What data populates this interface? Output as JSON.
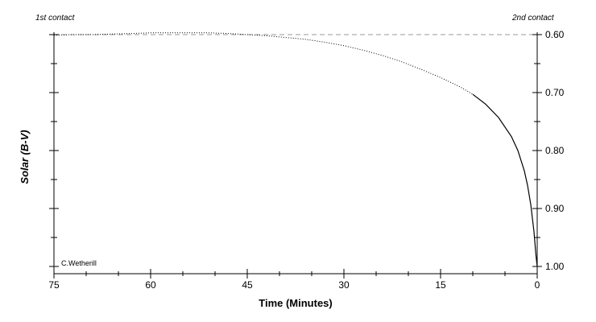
{
  "chart_data": {
    "type": "line",
    "xlabel": "Time (Minutes)",
    "ylabel": "Solar (B-V)",
    "x_reversed": true,
    "xlim": [
      75,
      0
    ],
    "ylim": [
      0.6,
      1.0
    ],
    "y_reversed": true,
    "y_axis_side": "right",
    "x_ticks": [
      75,
      60,
      45,
      30,
      15,
      0
    ],
    "x_tick_labels": [
      "75",
      "60",
      "45",
      "30",
      "15",
      "0"
    ],
    "y_ticks": [
      0.6,
      0.7,
      0.8,
      0.9,
      1.0
    ],
    "y_tick_labels": [
      "0.60",
      "0.70",
      "0.80",
      "0.90",
      "1.00"
    ],
    "annotations": {
      "first_contact": "1st contact",
      "second_contact": "2nd contact",
      "credit": "C.Wetherill"
    },
    "reference_line": {
      "y": 0.6,
      "style": "dashed",
      "color": "#999999"
    },
    "series": [
      {
        "style": "dotted-then-solid",
        "x": [
          75,
          72,
          69,
          66,
          63,
          60,
          57,
          54,
          51,
          48,
          45,
          42,
          39,
          36,
          33,
          30,
          27,
          24,
          21,
          18,
          15,
          12,
          10,
          8,
          6,
          4,
          3,
          2,
          1.5,
          1,
          0.5,
          0.2,
          0
        ],
        "y": [
          0.601,
          0.6,
          0.6,
          0.599,
          0.598,
          0.597,
          0.597,
          0.597,
          0.597,
          0.598,
          0.6,
          0.602,
          0.605,
          0.608,
          0.613,
          0.619,
          0.627,
          0.636,
          0.647,
          0.66,
          0.674,
          0.69,
          0.703,
          0.72,
          0.743,
          0.776,
          0.8,
          0.835,
          0.86,
          0.893,
          0.94,
          0.98,
          1.0
        ]
      }
    ],
    "solid_from_x": 9.5
  }
}
